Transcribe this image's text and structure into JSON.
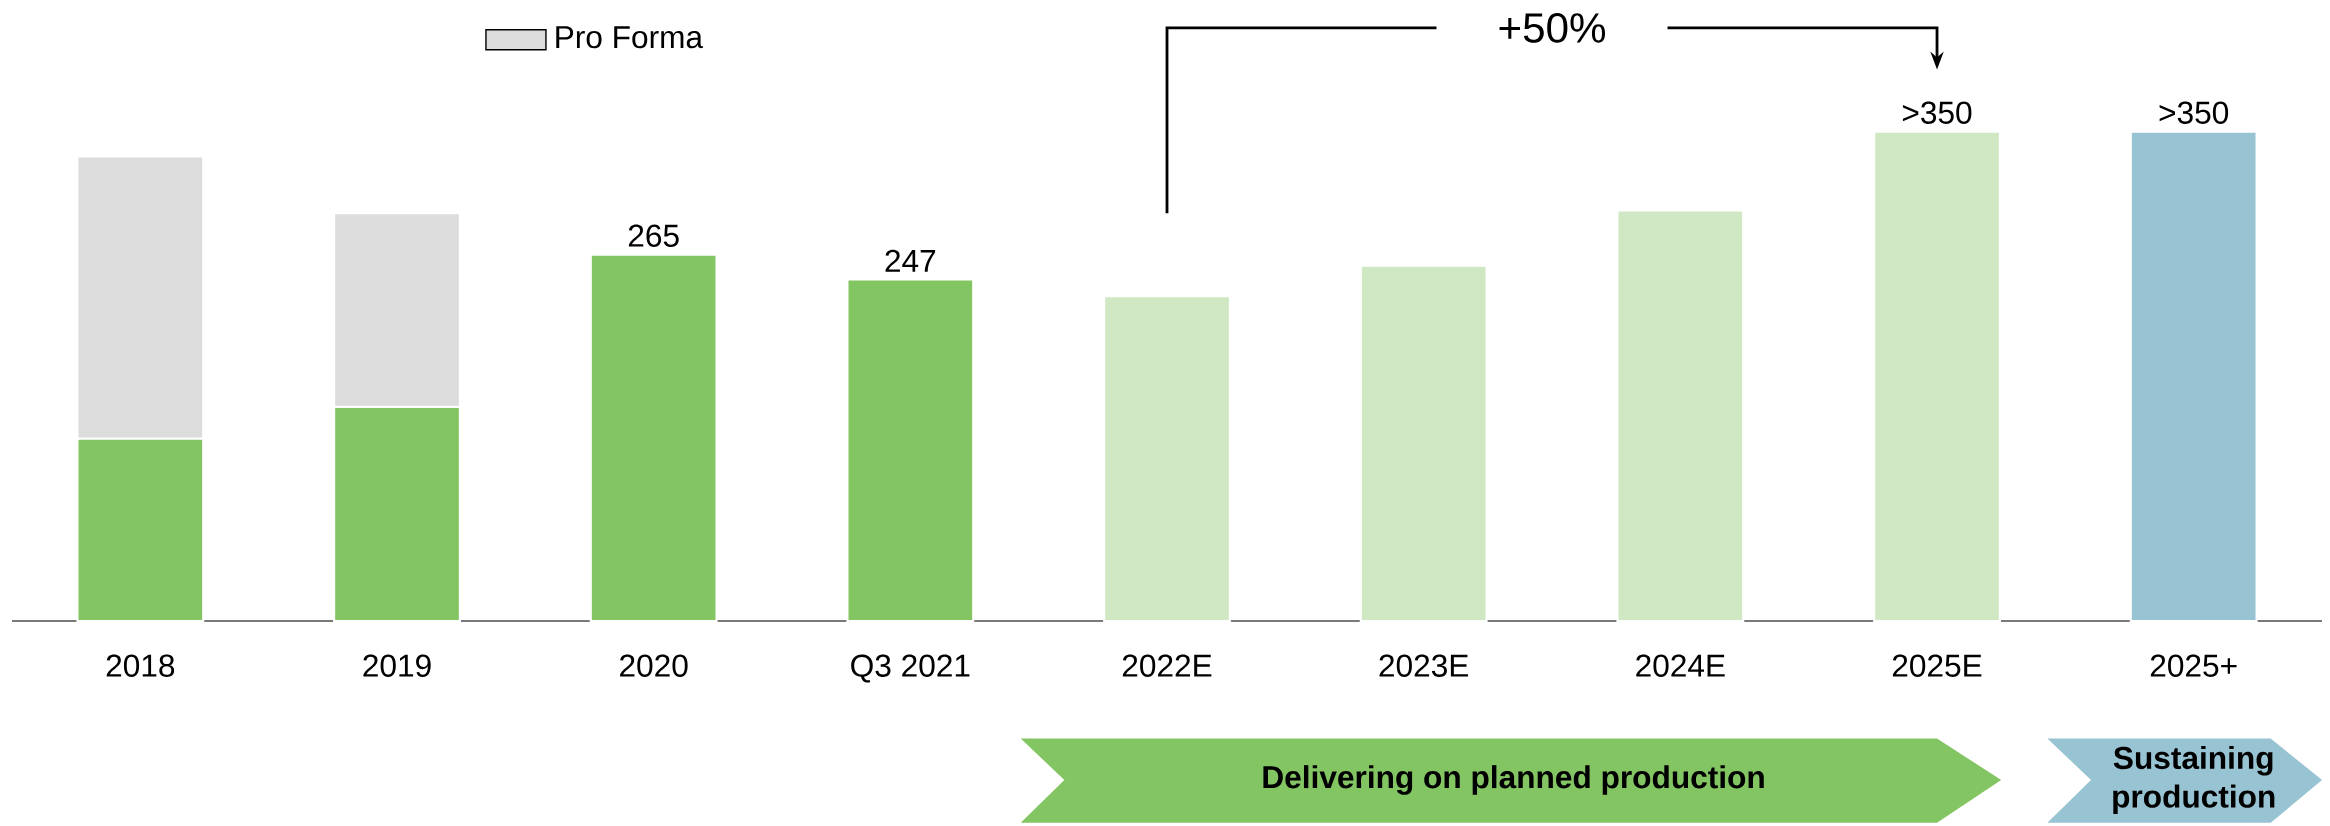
{
  "chart_data": {
    "type": "bar",
    "stacked": true,
    "categories": [
      "2018",
      "2019",
      "2020",
      "Q3 2021",
      "2022E",
      "2023E",
      "2024E",
      "2025E",
      "2025+"
    ],
    "series": [
      {
        "colors": [
          "#84c563",
          "#84c563",
          "#84c563",
          "#84c563",
          "#cfe8c3",
          "#cfe8c3",
          "#cfe8c3",
          "#cfe8c3",
          "#98c3d2"
        ],
        "values": [
          132,
          155,
          265,
          247,
          235,
          257,
          297,
          354,
          354
        ],
        "value_labels": [
          null,
          null,
          "265",
          "247",
          null,
          null,
          null,
          ">350",
          ">350"
        ]
      },
      {
        "name": "Pro Forma",
        "color": "#dcdcdc",
        "values": [
          204,
          140,
          null,
          null,
          null,
          null,
          null,
          null,
          null
        ]
      }
    ],
    "tick_labels": "x",
    "legend": "top left",
    "annotations": [
      "+50%",
      "Delivering on planned production",
      "Sustaining production"
    ]
  }
}
